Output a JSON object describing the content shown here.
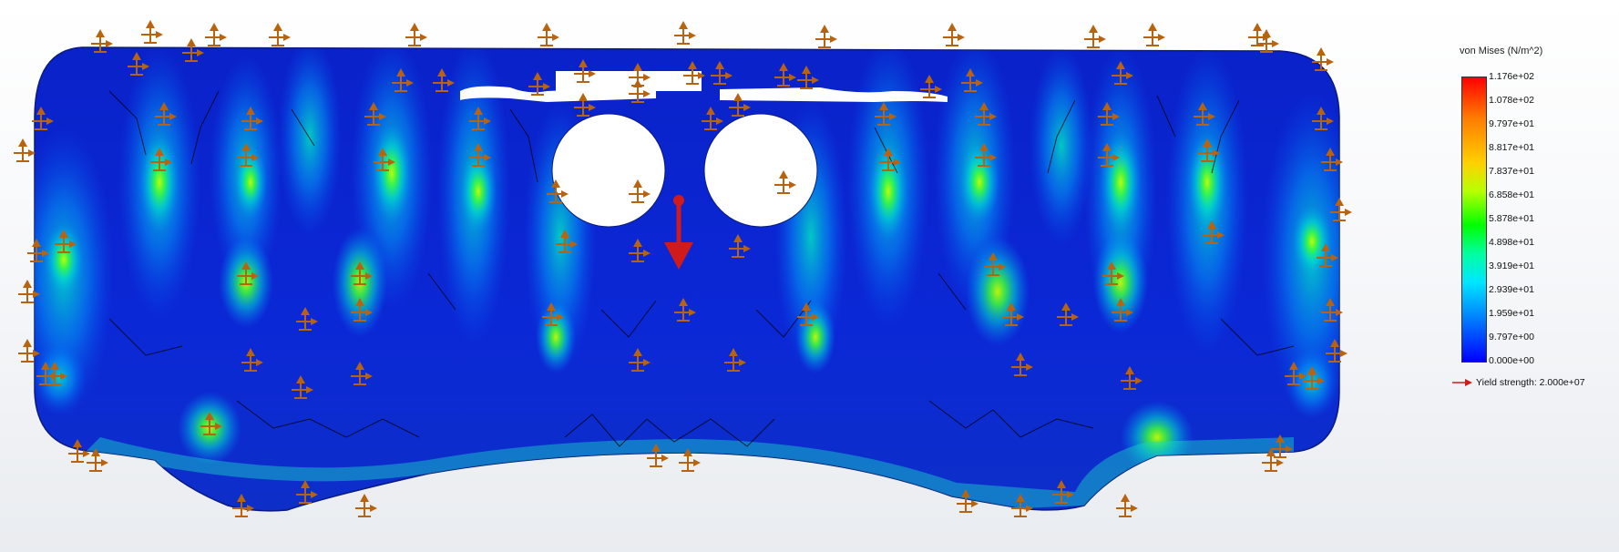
{
  "legend": {
    "title": "von Mises (N/m^2)",
    "ticks": [
      "1.176e+02",
      "1.078e+02",
      "9.797e+01",
      "8.817e+01",
      "7.837e+01",
      "6.858e+01",
      "5.878e+01",
      "4.898e+01",
      "3.919e+01",
      "2.939e+01",
      "1.959e+01",
      "9.797e+00",
      "0.000e+00"
    ],
    "yield_label": "Yield strength: 2.000e+07"
  },
  "colors": {
    "mesh_blue": "#0a1fc8",
    "fixture_orange": "#b8630f",
    "load_red": "#d11a1a",
    "deformed_edge": "#0d6b3a"
  },
  "model": {
    "fixtures": [
      [
        110,
        45
      ],
      [
        165,
        35
      ],
      [
        235,
        38
      ],
      [
        305,
        38
      ],
      [
        455,
        38
      ],
      [
        600,
        38
      ],
      [
        750,
        36
      ],
      [
        905,
        40
      ],
      [
        1045,
        38
      ],
      [
        1200,
        40
      ],
      [
        1265,
        38
      ],
      [
        1380,
        38
      ],
      [
        1390,
        45
      ],
      [
        1450,
        65
      ],
      [
        150,
        70
      ],
      [
        210,
        55
      ],
      [
        440,
        88
      ],
      [
        485,
        88
      ],
      [
        590,
        92
      ],
      [
        640,
        78
      ],
      [
        700,
        82
      ],
      [
        760,
        80
      ],
      [
        790,
        80
      ],
      [
        860,
        82
      ],
      [
        885,
        85
      ],
      [
        1020,
        95
      ],
      [
        1065,
        88
      ],
      [
        1230,
        80
      ],
      [
        45,
        130
      ],
      [
        25,
        165
      ],
      [
        40,
        275
      ],
      [
        30,
        320
      ],
      [
        30,
        385
      ],
      [
        50,
        410
      ],
      [
        1450,
        130
      ],
      [
        1460,
        175
      ],
      [
        1470,
        230
      ],
      [
        1455,
        280
      ],
      [
        1460,
        340
      ],
      [
        1465,
        385
      ],
      [
        1440,
        415
      ],
      [
        180,
        125
      ],
      [
        275,
        130
      ],
      [
        410,
        125
      ],
      [
        525,
        130
      ],
      [
        640,
        115
      ],
      [
        700,
        100
      ],
      [
        780,
        130
      ],
      [
        810,
        115
      ],
      [
        970,
        125
      ],
      [
        1080,
        125
      ],
      [
        1215,
        125
      ],
      [
        1320,
        125
      ],
      [
        175,
        175
      ],
      [
        270,
        170
      ],
      [
        420,
        175
      ],
      [
        525,
        170
      ],
      [
        610,
        210
      ],
      [
        700,
        210
      ],
      [
        860,
        200
      ],
      [
        975,
        175
      ],
      [
        1080,
        170
      ],
      [
        1215,
        170
      ],
      [
        1325,
        165
      ],
      [
        70,
        265
      ],
      [
        270,
        300
      ],
      [
        395,
        300
      ],
      [
        620,
        265
      ],
      [
        700,
        275
      ],
      [
        810,
        270
      ],
      [
        1090,
        290
      ],
      [
        1220,
        300
      ],
      [
        1330,
        255
      ],
      [
        335,
        350
      ],
      [
        395,
        340
      ],
      [
        605,
        345
      ],
      [
        750,
        340
      ],
      [
        885,
        345
      ],
      [
        1110,
        345
      ],
      [
        1170,
        345
      ],
      [
        1230,
        340
      ],
      [
        60,
        410
      ],
      [
        275,
        395
      ],
      [
        330,
        425
      ],
      [
        395,
        410
      ],
      [
        700,
        395
      ],
      [
        805,
        395
      ],
      [
        1120,
        400
      ],
      [
        1240,
        415
      ],
      [
        1420,
        410
      ],
      [
        230,
        465
      ],
      [
        85,
        495
      ],
      [
        105,
        505
      ],
      [
        335,
        540
      ],
      [
        265,
        555
      ],
      [
        400,
        555
      ],
      [
        720,
        500
      ],
      [
        755,
        505
      ],
      [
        1060,
        550
      ],
      [
        1120,
        555
      ],
      [
        1165,
        540
      ],
      [
        1235,
        555
      ],
      [
        1395,
        505
      ],
      [
        1405,
        490
      ]
    ],
    "loads": [
      [
        745,
        220
      ]
    ]
  }
}
